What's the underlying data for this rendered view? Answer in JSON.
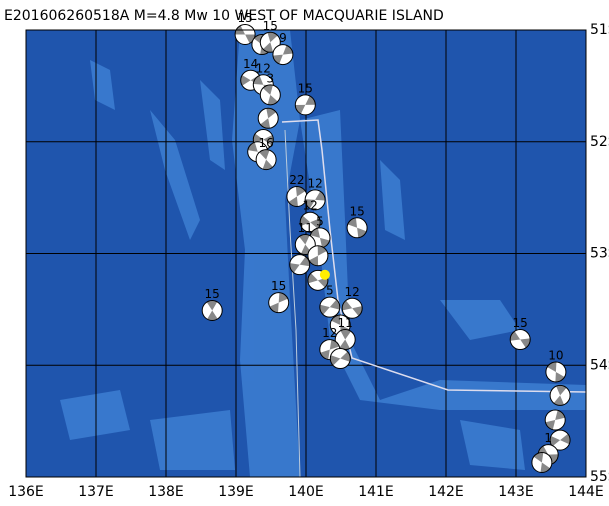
{
  "map": {
    "title": "E201606260518A M=4.8 Mw 10 WEST OF MACQUARIE ISLAND",
    "xlim": [
      136,
      144
    ],
    "xticks": [
      {
        "value": 136,
        "label": "136E"
      },
      {
        "value": 137,
        "label": "137E"
      },
      {
        "value": 138,
        "label": "138E"
      },
      {
        "value": 139,
        "label": "139E"
      },
      {
        "value": 140,
        "label": "140E"
      },
      {
        "value": 141,
        "label": "141E"
      },
      {
        "value": 142,
        "label": "142E"
      },
      {
        "value": 143,
        "label": "143E"
      },
      {
        "value": 144,
        "label": "144E"
      }
    ],
    "ylim": [
      -51,
      -55
    ],
    "yticks": [
      {
        "value": -51,
        "label": "51S"
      },
      {
        "value": -52,
        "label": "52S"
      },
      {
        "value": -53,
        "label": "53S"
      },
      {
        "value": -54,
        "label": "54S"
      },
      {
        "value": -55,
        "label": "55S"
      }
    ],
    "grid": true,
    "epicenter": {
      "lon": 140.27,
      "lat": -53.19,
      "color": "#ffee00"
    },
    "events": [
      {
        "label": "15",
        "lon": 139.13,
        "lat": -51.04
      },
      {
        "label": null,
        "lon": 139.37,
        "lat": -51.13
      },
      {
        "label": "15",
        "lon": 139.49,
        "lat": -51.11
      },
      {
        "label": "9",
        "lon": 139.67,
        "lat": -51.22
      },
      {
        "label": "14",
        "lon": 139.21,
        "lat": -51.45
      },
      {
        "label": "12",
        "lon": 139.39,
        "lat": -51.49
      },
      {
        "label": "3",
        "lon": 139.49,
        "lat": -51.58
      },
      {
        "label": null,
        "lon": 139.46,
        "lat": -51.79
      },
      {
        "label": "15",
        "lon": 139.99,
        "lat": -51.67
      },
      {
        "label": null,
        "lon": 139.39,
        "lat": -51.98
      },
      {
        "label": null,
        "lon": 139.31,
        "lat": -52.09
      },
      {
        "label": "16",
        "lon": 139.43,
        "lat": -52.16
      },
      {
        "label": "22",
        "lon": 139.87,
        "lat": -52.49
      },
      {
        "label": "12",
        "lon": 140.13,
        "lat": -52.52
      },
      {
        "label": "12",
        "lon": 140.06,
        "lat": -52.72
      },
      {
        "label": "5",
        "lon": 140.2,
        "lat": -52.86
      },
      {
        "label": "11",
        "lon": 139.99,
        "lat": -52.92
      },
      {
        "label": null,
        "lon": 140.17,
        "lat": -53.02
      },
      {
        "label": null,
        "lon": 139.91,
        "lat": -53.1
      },
      {
        "label": null,
        "lon": 140.17,
        "lat": -53.24
      },
      {
        "label": "15",
        "lon": 140.73,
        "lat": -52.77
      },
      {
        "label": "15",
        "lon": 138.66,
        "lat": -53.51
      },
      {
        "label": "15",
        "lon": 139.61,
        "lat": -53.44
      },
      {
        "label": "5",
        "lon": 140.34,
        "lat": -53.48
      },
      {
        "label": "12",
        "lon": 140.66,
        "lat": -53.49
      },
      {
        "label": null,
        "lon": 140.49,
        "lat": -53.64
      },
      {
        "label": "11",
        "lon": 140.56,
        "lat": -53.77
      },
      {
        "label": "12",
        "lon": 140.34,
        "lat": -53.86
      },
      {
        "label": null,
        "lon": 140.49,
        "lat": -53.94
      },
      {
        "label": "15",
        "lon": 143.06,
        "lat": -53.77
      },
      {
        "label": "10",
        "lon": 143.57,
        "lat": -54.06
      },
      {
        "label": null,
        "lon": 143.63,
        "lat": -54.27
      },
      {
        "label": null,
        "lon": 143.56,
        "lat": -54.49
      },
      {
        "label": null,
        "lon": 143.63,
        "lat": -54.67
      },
      {
        "label": "1",
        "lon": 143.46,
        "lat": -54.8
      },
      {
        "label": null,
        "lon": 143.37,
        "lat": -54.87
      }
    ]
  }
}
